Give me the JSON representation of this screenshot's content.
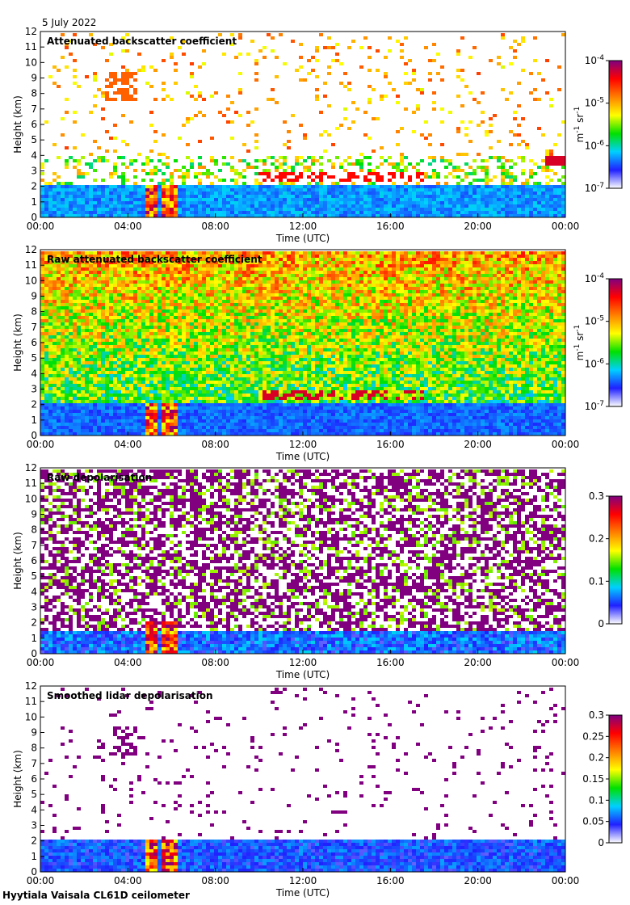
{
  "date_label": "5 July 2022",
  "footer": "Hyytiala Vaisala CL61D ceilometer",
  "colors": {
    "cmap": [
      "#ffffff",
      "#2020ff",
      "#00d0ff",
      "#00e000",
      "#ffff00",
      "#ff8000",
      "#ff0000",
      "#800080"
    ]
  },
  "chart_data": [
    {
      "type": "heatmap",
      "title": "Attenuated backscatter coefficient",
      "xlabel": "Time (UTC)",
      "ylabel": "Height (km)",
      "xticks": [
        "00:00",
        "04:00",
        "08:00",
        "12:00",
        "16:00",
        "20:00",
        "00:00"
      ],
      "xlim_hours": [
        0,
        24
      ],
      "ylim": [
        0,
        12
      ],
      "yticks": [
        0,
        1,
        2,
        3,
        4,
        5,
        6,
        7,
        8,
        9,
        10,
        11,
        12
      ],
      "colorbar": {
        "scale": "log",
        "range": [
          1e-07,
          0.0001
        ],
        "ticks": [
          "10-7",
          "10-6",
          "10-5",
          "10-4"
        ],
        "unit": "m-1 sr-1"
      },
      "features": {
        "boundary_layer_top_km": 2.2,
        "cloud_layers": [
          {
            "t_start_h": 3.0,
            "t_end_h": 4.5,
            "z_km": 8.5
          },
          {
            "t_start_h": 10.0,
            "t_end_h": 17.5,
            "z_km": 2.7
          },
          {
            "t_start_h": 23.0,
            "t_end_h": 24.0,
            "z_km": 3.6
          }
        ],
        "precipitation": [
          {
            "t_start_h": 4.8,
            "t_end_h": 5.3
          },
          {
            "t_start_h": 5.6,
            "t_end_h": 6.2
          }
        ]
      }
    },
    {
      "type": "heatmap",
      "title": "Raw attenuated backscatter coefficient",
      "xlabel": "Time (UTC)",
      "ylabel": "Height (km)",
      "xticks": [
        "00:00",
        "04:00",
        "08:00",
        "12:00",
        "16:00",
        "20:00",
        "00:00"
      ],
      "xlim_hours": [
        0,
        24
      ],
      "ylim": [
        0,
        12
      ],
      "yticks": [
        0,
        1,
        2,
        3,
        4,
        5,
        6,
        7,
        8,
        9,
        10,
        11,
        12
      ],
      "colorbar": {
        "scale": "log",
        "range": [
          1e-07,
          0.0001
        ],
        "ticks": [
          "10-7",
          "10-6",
          "10-5",
          "10-4"
        ],
        "unit": "m-1 sr-1"
      }
    },
    {
      "type": "heatmap",
      "title": "Raw depolarisation",
      "xlabel": "Time (UTC)",
      "ylabel": "Height (km)",
      "xticks": [
        "00:00",
        "04:00",
        "08:00",
        "12:00",
        "16:00",
        "20:00",
        "00:00"
      ],
      "xlim_hours": [
        0,
        24
      ],
      "ylim": [
        0,
        12
      ],
      "yticks": [
        0,
        1,
        2,
        3,
        4,
        5,
        6,
        7,
        8,
        9,
        10,
        11,
        12
      ],
      "colorbar": {
        "scale": "linear",
        "range": [
          0,
          0.3
        ],
        "ticks": [
          "0",
          "0.1",
          "0.2",
          "0.3"
        ],
        "unit": ""
      }
    },
    {
      "type": "heatmap",
      "title": "Smoothed lidar depolarisation",
      "xlabel": "Time (UTC)",
      "ylabel": "Height (km)",
      "xticks": [
        "00:00",
        "04:00",
        "08:00",
        "12:00",
        "16:00",
        "20:00",
        "00:00"
      ],
      "xlim_hours": [
        0,
        24
      ],
      "ylim": [
        0,
        12
      ],
      "yticks": [
        0,
        1,
        2,
        3,
        4,
        5,
        6,
        7,
        8,
        9,
        10,
        11,
        12
      ],
      "colorbar": {
        "scale": "linear",
        "range": [
          0,
          0.3
        ],
        "ticks": [
          "0",
          "0.05",
          "0.1",
          "0.15",
          "0.2",
          "0.25",
          "0.3"
        ],
        "unit": ""
      }
    }
  ]
}
